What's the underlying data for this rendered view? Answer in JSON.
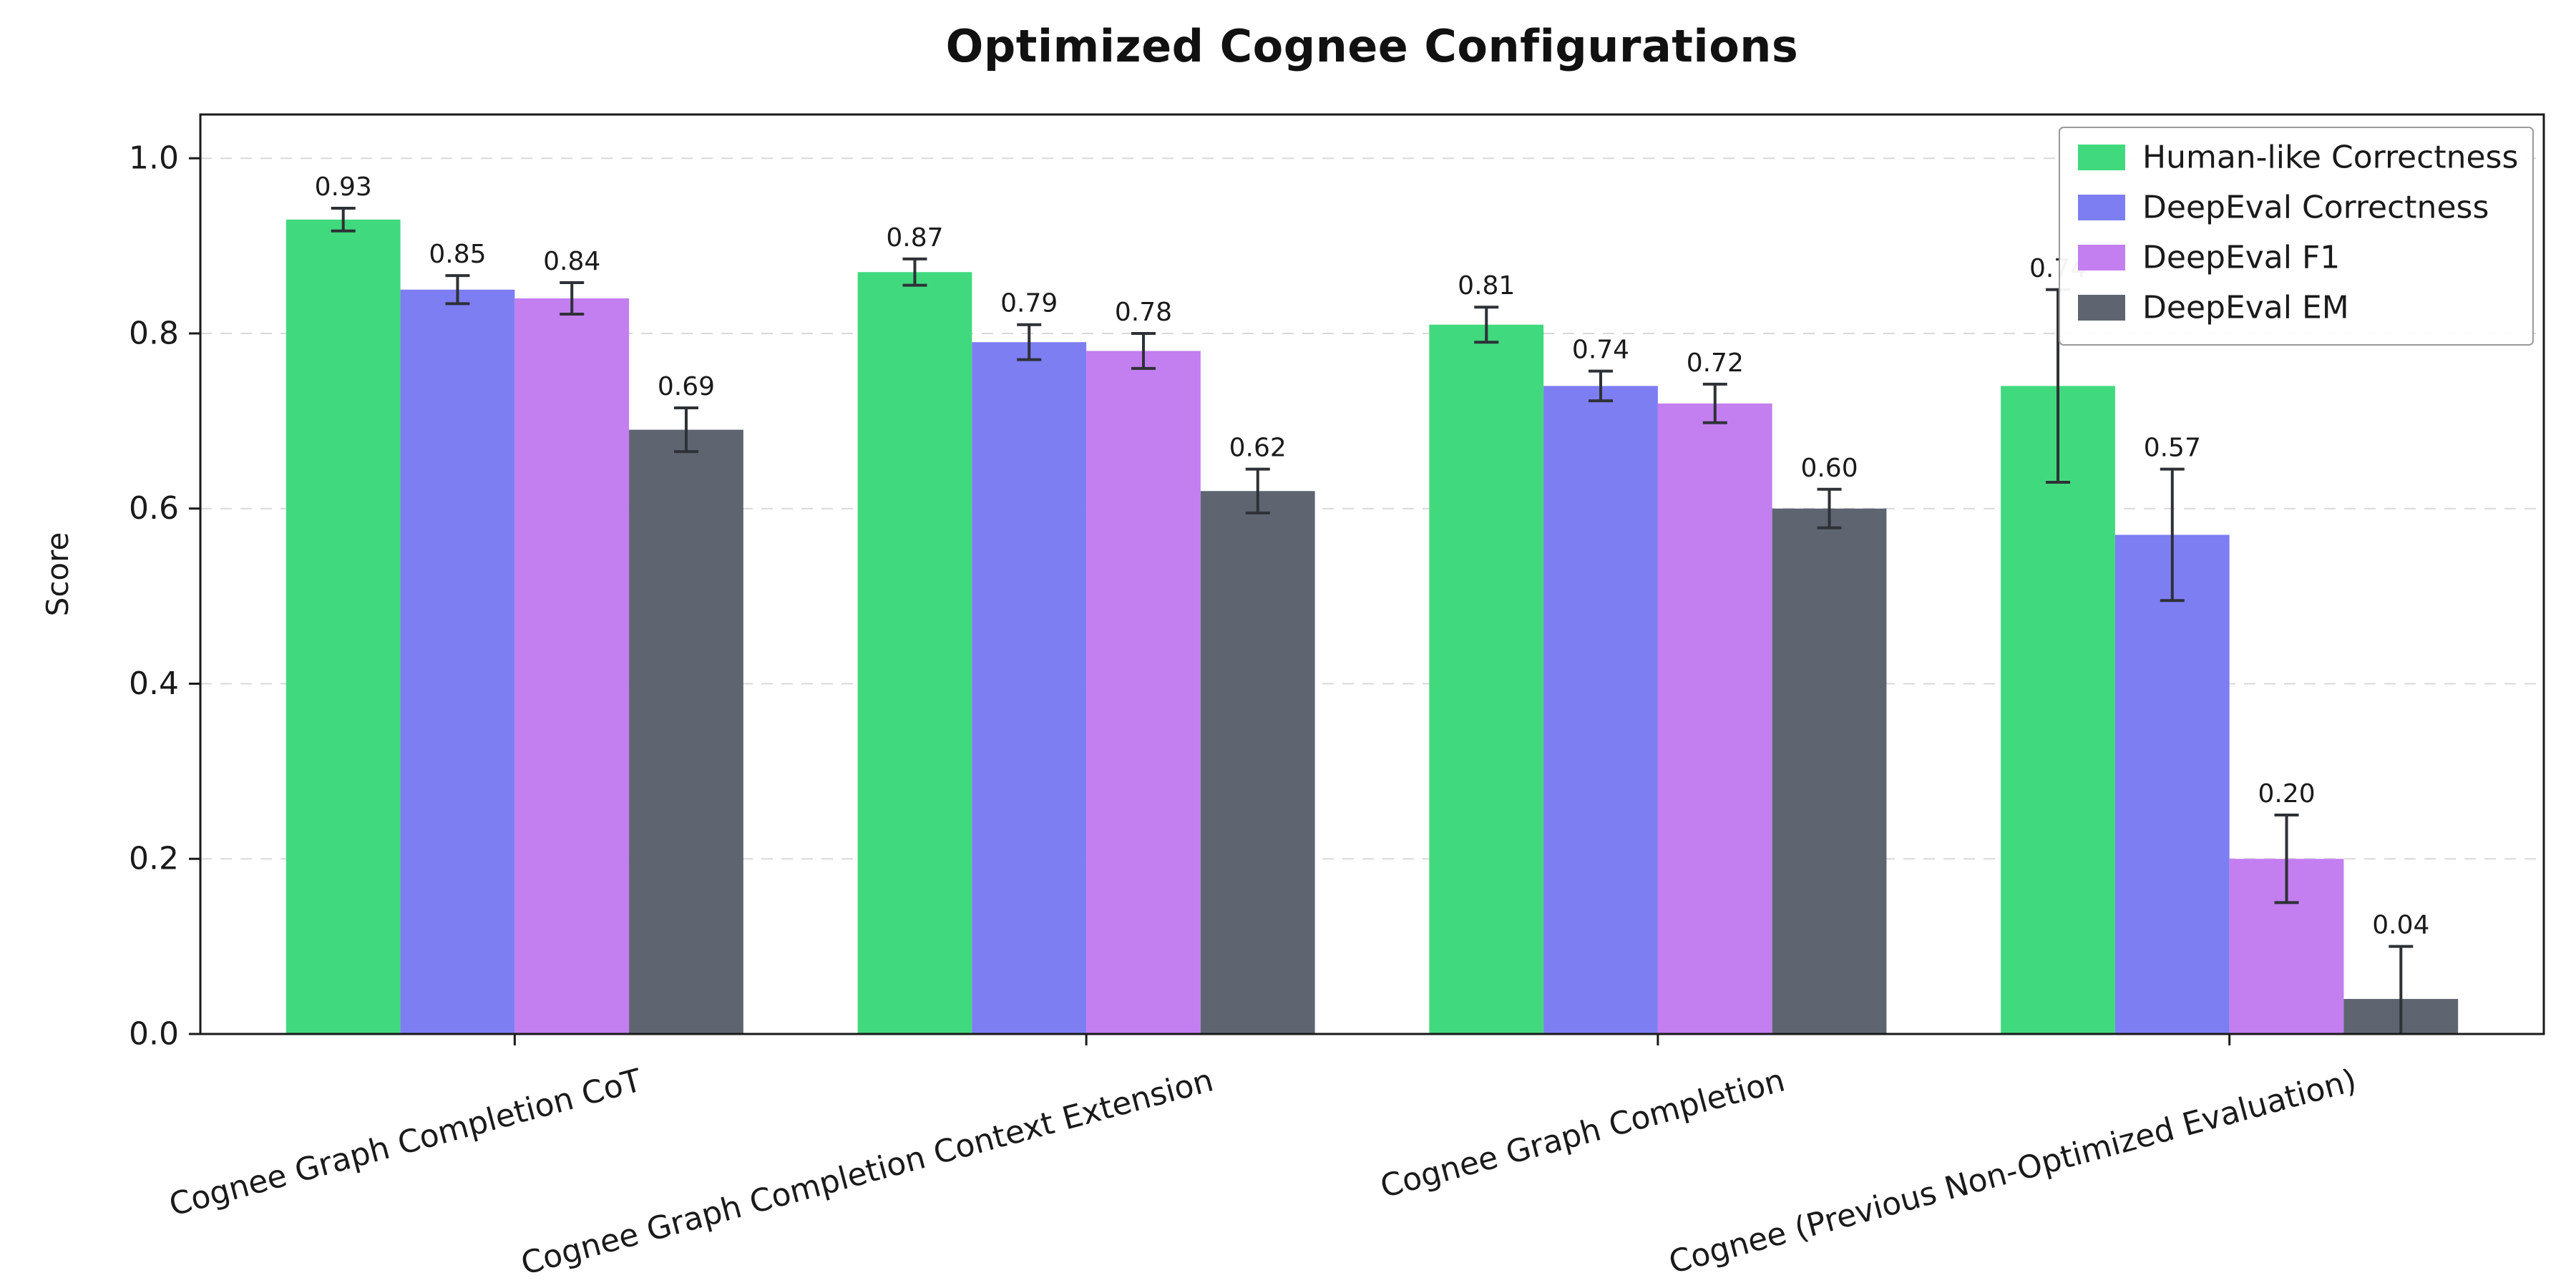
{
  "chart_data": {
    "type": "bar",
    "title": "Optimized Cognee Configurations",
    "ylabel": "Score",
    "xlabel": "",
    "ylim": [
      0,
      1.05
    ],
    "yticks": [
      0.0,
      0.2,
      0.4,
      0.6,
      0.8,
      1.0
    ],
    "ytick_labels": [
      "0.0",
      "0.2",
      "0.4",
      "0.6",
      "0.8",
      "1.0"
    ],
    "grid": true,
    "grid_style": "dashed",
    "legend_position": "upper-right-inside",
    "categories": [
      "Cognee Graph Completion CoT",
      "Cognee Graph Completion Context Extension",
      "Cognee Graph Completion",
      "Cognee (Previous Non-Optimized Evaluation)"
    ],
    "series": [
      {
        "name": "Human-like Correctness",
        "color": "#41d97e",
        "values": [
          0.93,
          0.87,
          0.81,
          0.74
        ],
        "errors": [
          0.013,
          0.015,
          0.02,
          0.11
        ],
        "labels": [
          "0.93",
          "0.87",
          "0.81",
          "0.74"
        ]
      },
      {
        "name": "DeepEval Correctness",
        "color": "#7d7ef2",
        "values": [
          0.85,
          0.79,
          0.74,
          0.57
        ],
        "errors": [
          0.016,
          0.02,
          0.017,
          0.075
        ],
        "labels": [
          "0.85",
          "0.79",
          "0.74",
          "0.57"
        ]
      },
      {
        "name": "DeepEval F1",
        "color": "#c37ef0",
        "values": [
          0.84,
          0.78,
          0.72,
          0.2
        ],
        "errors": [
          0.018,
          0.02,
          0.022,
          0.05
        ],
        "labels": [
          "0.84",
          "0.78",
          "0.72",
          "0.20"
        ]
      },
      {
        "name": "DeepEval EM",
        "color": "#5e6570",
        "values": [
          0.69,
          0.62,
          0.6,
          0.04
        ],
        "errors": [
          0.025,
          0.025,
          0.022,
          0.06
        ],
        "labels": [
          "0.69",
          "0.62",
          "0.60",
          "0.04"
        ]
      }
    ],
    "error_bar_color": "#2e3136",
    "axis_color": "#1a1a1a",
    "grid_color": "#d9d9d9",
    "legend_border_color": "#9a9a9a"
  }
}
